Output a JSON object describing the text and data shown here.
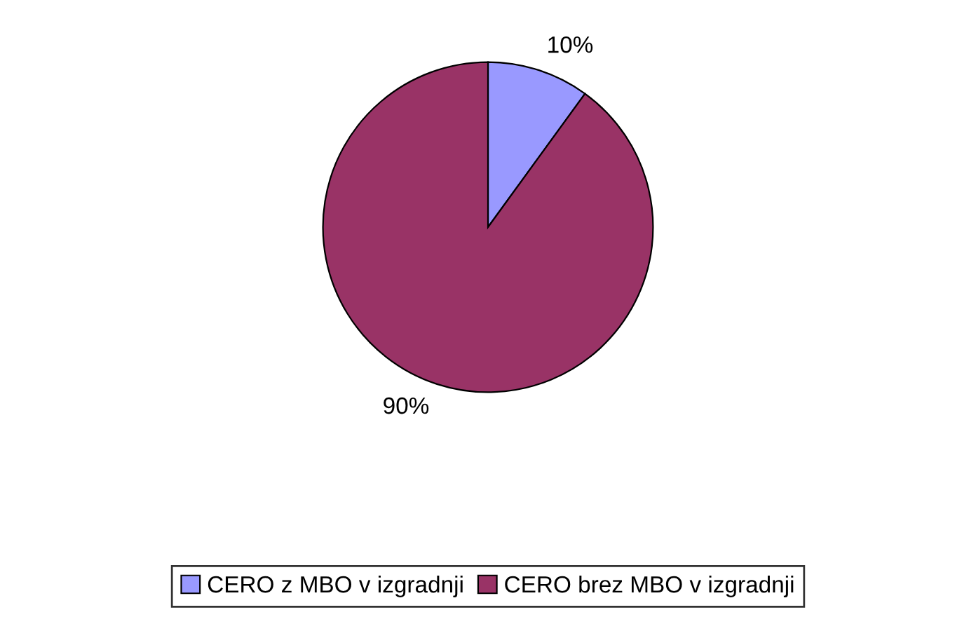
{
  "chart_data": {
    "type": "pie",
    "categories": [
      "CERO z MBO v izgradnji",
      "CERO brez MBO v izgradnji"
    ],
    "values": [
      10,
      90
    ],
    "colors": [
      "#9999ff",
      "#993366"
    ],
    "value_labels": [
      "10%",
      "90%"
    ],
    "legend": "bottom"
  }
}
